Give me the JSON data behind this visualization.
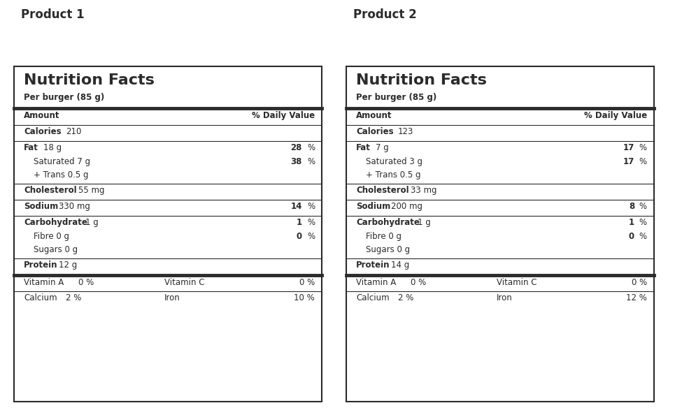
{
  "products": [
    {
      "title": "Product 1",
      "serving": "Per burger (85 g)",
      "calories": "210",
      "fat": "18 g",
      "fat_pct": "28",
      "saturated": "7 g",
      "saturated_pct": "38",
      "trans": "0.5 g",
      "cholesterol": "55 mg",
      "sodium": "330 mg",
      "sodium_pct": "14",
      "carbohydrate": "1 g",
      "carb_pct": "1",
      "fibre": "0 g",
      "fibre_pct": "0",
      "sugars": "0 g",
      "protein": "12 g",
      "vit_a": "0",
      "vit_c": "0",
      "calcium": "2",
      "iron": "10"
    },
    {
      "title": "Product 2",
      "serving": "Per burger (85 g)",
      "calories": "123",
      "fat": "7 g",
      "fat_pct": "17",
      "saturated": "3 g",
      "saturated_pct": "17",
      "trans": "0.5 g",
      "cholesterol": "33 mg",
      "sodium": "200 mg",
      "sodium_pct": "8",
      "carbohydrate": "1 g",
      "carb_pct": "1",
      "fibre": "0 g",
      "fibre_pct": "0",
      "sugars": "0 g",
      "protein": "14 g",
      "vit_a": "0",
      "vit_c": "0",
      "calcium": "2",
      "iron": "12"
    }
  ],
  "bg_color": "#ffffff",
  "text_color": "#2b2b2b",
  "border_color": "#2b2b2b",
  "fig_width": 9.75,
  "fig_height": 5.87,
  "dpi": 100
}
